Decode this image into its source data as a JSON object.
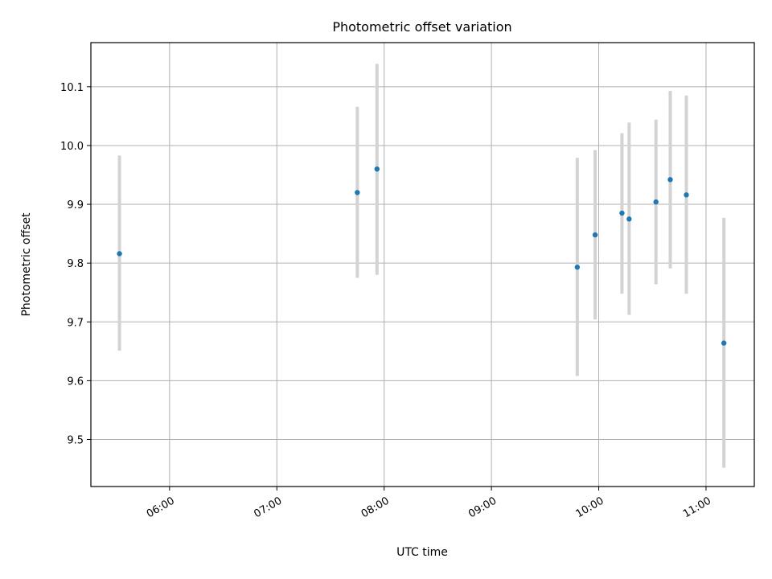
{
  "chart_data": {
    "type": "scatter",
    "title": "Photometric offset variation",
    "xlabel": "UTC time",
    "ylabel": "Photometric offset",
    "x_axis": "time",
    "xlim": [
      "05:16",
      "11:27"
    ],
    "ylim": [
      9.42,
      10.175
    ],
    "xticks": [
      "06:00",
      "07:00",
      "08:00",
      "09:00",
      "10:00",
      "11:00"
    ],
    "yticks": [
      9.5,
      9.6,
      9.7,
      9.8,
      9.9,
      10.0,
      10.1
    ],
    "grid": true,
    "points": [
      {
        "time": "05:32",
        "value": 9.816,
        "err_low": 9.651,
        "err_high": 9.983
      },
      {
        "time": "07:45",
        "value": 9.92,
        "err_low": 9.775,
        "err_high": 10.066
      },
      {
        "time": "07:56",
        "value": 9.96,
        "err_low": 9.78,
        "err_high": 10.139
      },
      {
        "time": "09:48",
        "value": 9.793,
        "err_low": 9.608,
        "err_high": 9.979
      },
      {
        "time": "09:58",
        "value": 9.848,
        "err_low": 9.704,
        "err_high": 9.992
      },
      {
        "time": "10:13",
        "value": 9.885,
        "err_low": 9.748,
        "err_high": 10.021
      },
      {
        "time": "10:17",
        "value": 9.875,
        "err_low": 9.712,
        "err_high": 10.039
      },
      {
        "time": "10:32",
        "value": 9.904,
        "err_low": 9.764,
        "err_high": 10.044
      },
      {
        "time": "10:40",
        "value": 9.942,
        "err_low": 9.791,
        "err_high": 10.093
      },
      {
        "time": "10:49",
        "value": 9.916,
        "err_low": 9.748,
        "err_high": 10.085
      },
      {
        "time": "11:10",
        "value": 9.664,
        "err_low": 9.452,
        "err_high": 9.877
      }
    ]
  }
}
